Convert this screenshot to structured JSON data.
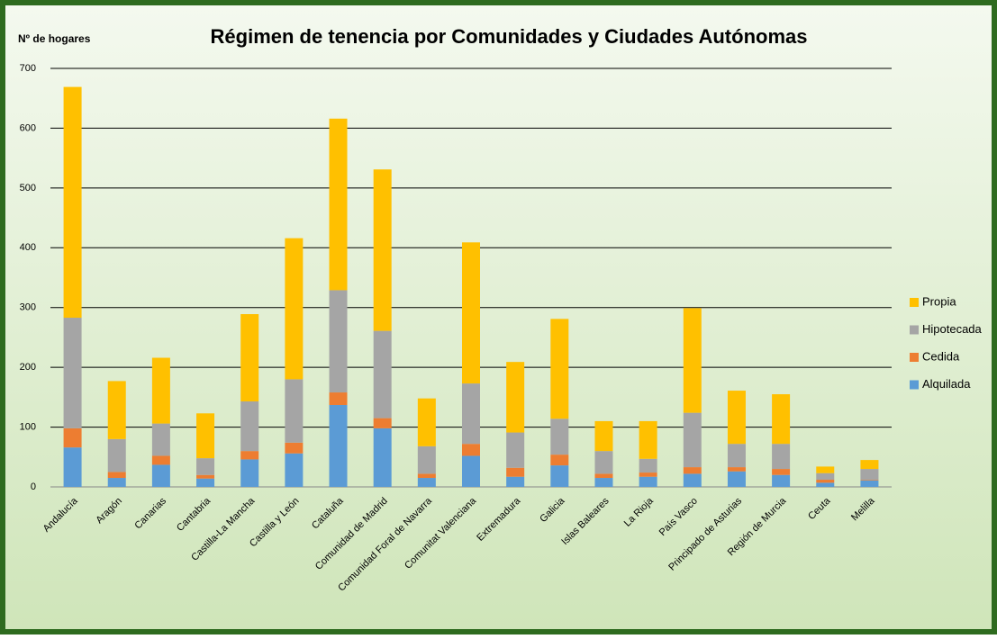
{
  "chart_data": {
    "type": "bar",
    "stacked": true,
    "title": "Régimen de tenencia por Comunidades y Ciudades Autónomas",
    "y_label": "Nº de hogares",
    "categories": [
      "Andalucía",
      "Aragón",
      "Canarias",
      "Cantabria",
      "Castilla-La Mancha",
      "Castilla y León",
      "Cataluña",
      "Comunidad de Madrid",
      "Comunidad Foral de Navarra",
      "Comunitat Valenciana",
      "Extremadura",
      "Galicia",
      "Islas Baleares",
      "La Rioja",
      "País Vasco",
      "Principado de Asturias",
      "Región de Murcia",
      "Ceuta",
      "Melilla"
    ],
    "series": [
      {
        "name": "Alquilada",
        "color": "#5b9bd5",
        "values": [
          66,
          15,
          37,
          14,
          46,
          56,
          137,
          98,
          15,
          52,
          17,
          36,
          15,
          17,
          22,
          26,
          20,
          7,
          11
        ]
      },
      {
        "name": "Cedida",
        "color": "#ed7d31",
        "values": [
          32,
          10,
          15,
          6,
          14,
          18,
          21,
          17,
          7,
          20,
          15,
          18,
          7,
          7,
          11,
          7,
          10,
          5,
          1
        ]
      },
      {
        "name": "Hipotecada",
        "color": "#a5a5a5",
        "values": [
          185,
          55,
          54,
          28,
          83,
          106,
          171,
          146,
          46,
          101,
          59,
          60,
          38,
          23,
          91,
          39,
          42,
          11,
          18
        ]
      },
      {
        "name": "Propia",
        "color": "#ffc000",
        "values": [
          386,
          97,
          110,
          75,
          146,
          236,
          287,
          270,
          80,
          236,
          118,
          167,
          50,
          63,
          175,
          89,
          83,
          11,
          15
        ]
      }
    ],
    "ylim": [
      0,
      700
    ],
    "yticks": [
      0,
      100,
      200,
      300,
      400,
      500,
      600,
      700
    ],
    "grid": true,
    "legend": "right"
  }
}
